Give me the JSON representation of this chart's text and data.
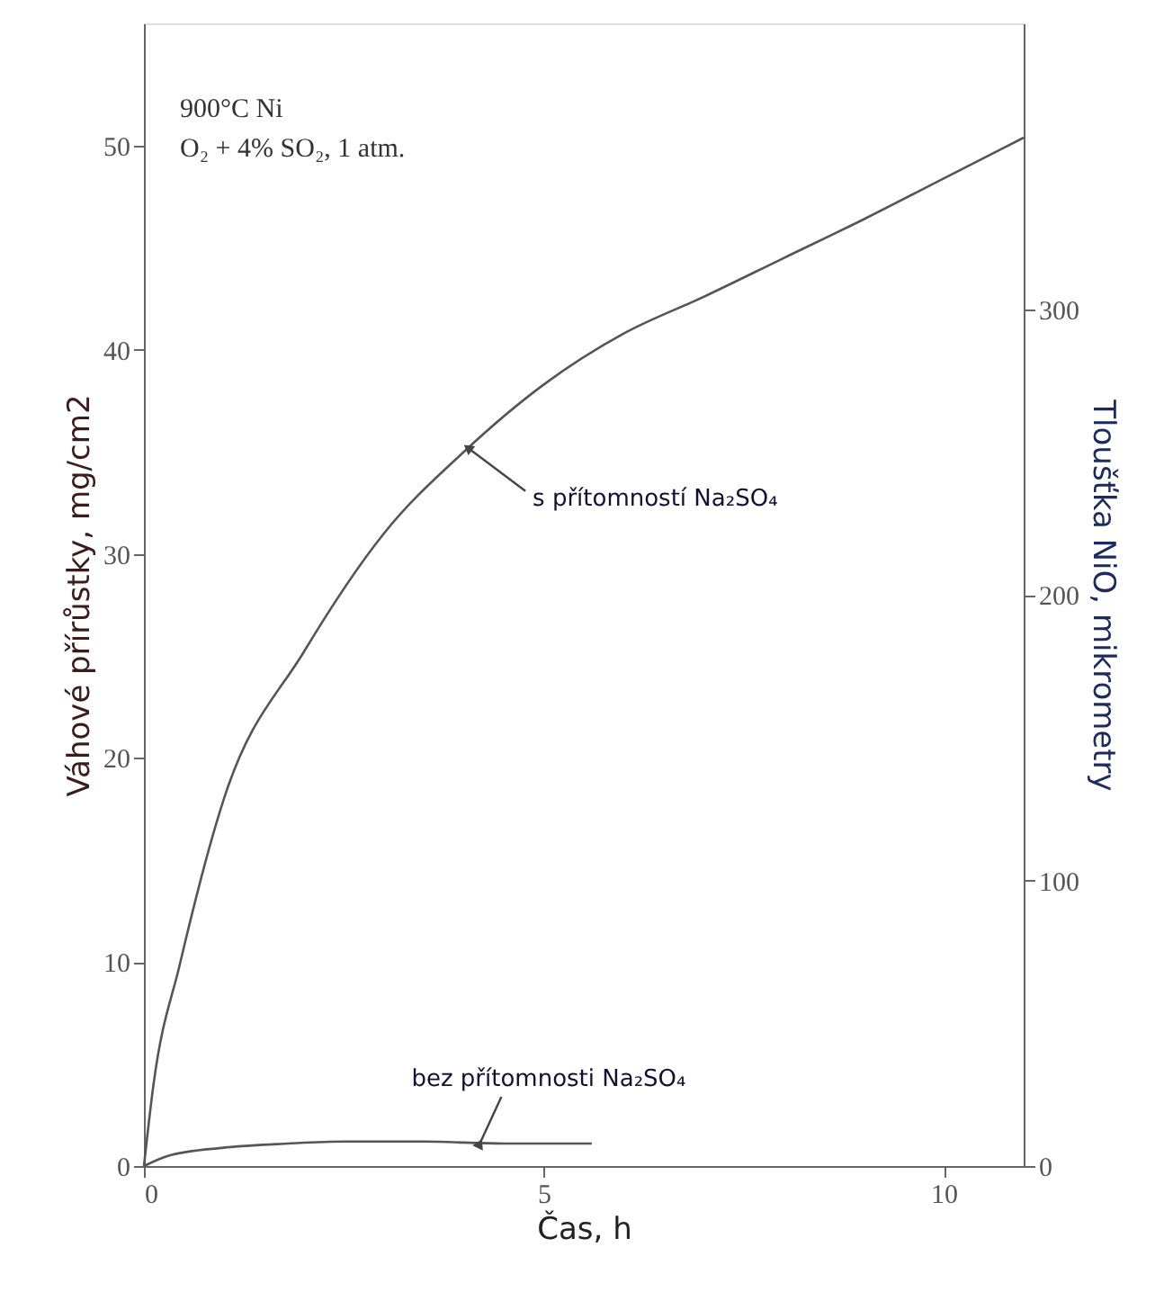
{
  "chart_data": {
    "type": "line",
    "xlabel": "Čas, h",
    "ylabel": "Váhové přírůstky, mg/cm2",
    "y2label": "Tloušťka NiO, mikrometry",
    "xlim": [
      0,
      11
    ],
    "xticks": [
      0,
      5,
      10
    ],
    "ylim": [
      0,
      56
    ],
    "yticks": [
      0,
      10,
      20,
      30,
      40,
      50
    ],
    "y2lim": [
      0,
      400
    ],
    "y2ticks": [
      0,
      100,
      200,
      300
    ],
    "grid": false,
    "marker": "none",
    "line_style": "solid",
    "series": [
      {
        "color": "#555555",
        "x": [
          0,
          0.12,
          0.45,
          1,
          2,
          3,
          4,
          5,
          6,
          7,
          8,
          9,
          10,
          11
        ],
        "values": [
          0,
          4,
          9.9,
          18,
          25.2,
          31,
          35,
          38.3,
          40.8,
          42.6,
          44.5,
          46.4,
          48.4,
          50.4
        ]
      },
      {
        "color": "#555555",
        "x": [
          0,
          0.3,
          1,
          1.8,
          2.5,
          3.5,
          4.5,
          5.6
        ],
        "values": [
          0,
          0.5,
          0.9,
          1.1,
          1.2,
          1.2,
          1.1,
          1.1
        ]
      }
    ],
    "annotations": [
      "900°C Ni",
      "O₂ + 4% SO₂, 1 atm.",
      {
        "text": "s přítomností Na₂SO₄",
        "x": 4.05,
        "y": 35.2
      },
      {
        "text": "bez přítomnosti Na₂SO₄",
        "x": 4.2,
        "y": 1.1
      }
    ]
  }
}
